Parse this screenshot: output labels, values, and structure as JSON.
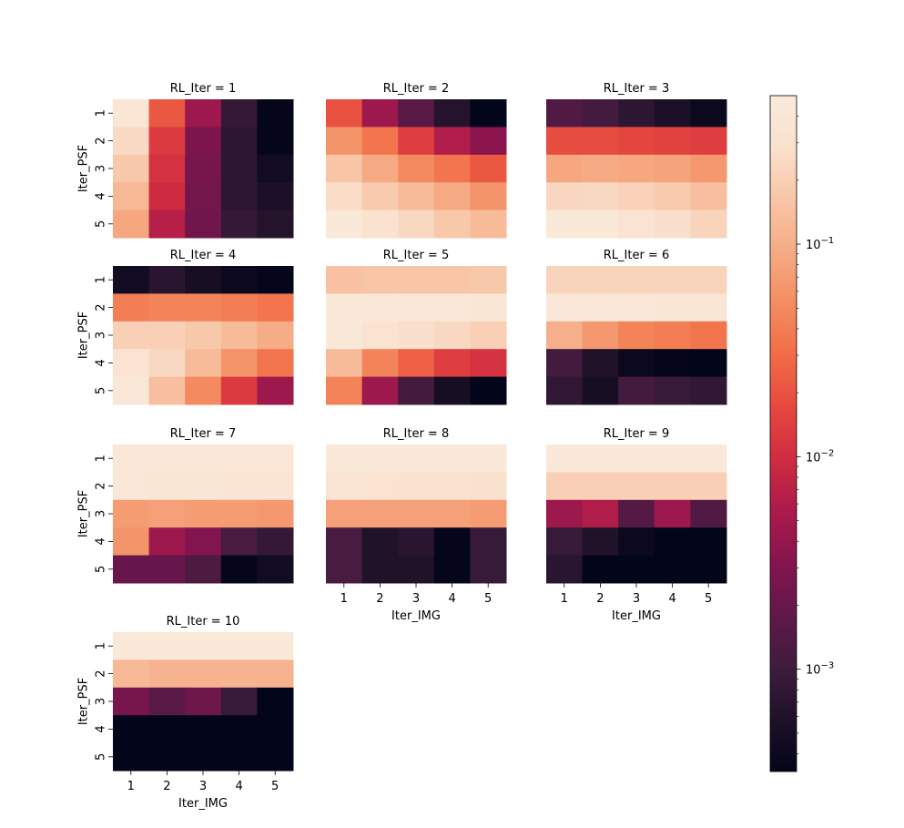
{
  "figure": {
    "colorbar": {
      "scale": "log",
      "range": [
        0.00033,
        0.5
      ],
      "colormap": "rocket",
      "tick_labels": [
        "10^-3",
        "10^-2",
        "10^-1"
      ],
      "tick_values": [
        0.001,
        0.01,
        0.1
      ]
    },
    "colors": {
      "rocket_stops": [
        "#03051a",
        "#1e1128",
        "#3e1c3c",
        "#60184a",
        "#85144e",
        "#ab1a4b",
        "#cf2c41",
        "#e6483f",
        "#f16c46",
        "#f48d61",
        "#f6ab85",
        "#f8c6a8",
        "#fae0cd",
        "#faebdd"
      ]
    }
  },
  "chart_data": {
    "type": "heatmap",
    "xlabel": "Iter_IMG",
    "ylabel": "Iter_PSF",
    "x_ticks": [
      "1",
      "2",
      "3",
      "4",
      "5"
    ],
    "y_ticks": [
      "1",
      "2",
      "3",
      "4",
      "5"
    ],
    "value_scale": "log",
    "panels": [
      {
        "title": "RL_Iter = 1",
        "values": [
          [
            0.38,
            0.022,
            0.0045,
            0.00085,
            0.00035
          ],
          [
            0.25,
            0.013,
            0.0028,
            0.00075,
            0.00035
          ],
          [
            0.17,
            0.011,
            0.0025,
            0.00075,
            0.00045
          ],
          [
            0.12,
            0.0095,
            0.0024,
            0.00075,
            0.00055
          ],
          [
            0.085,
            0.0065,
            0.0023,
            0.00085,
            0.00065
          ]
        ]
      },
      {
        "title": "RL_Iter = 2",
        "values": [
          [
            0.02,
            0.0045,
            0.0016,
            0.00065,
            0.00033
          ],
          [
            0.06,
            0.035,
            0.014,
            0.006,
            0.0035
          ],
          [
            0.16,
            0.09,
            0.05,
            0.035,
            0.022
          ],
          [
            0.26,
            0.18,
            0.13,
            0.09,
            0.06
          ],
          [
            0.42,
            0.31,
            0.24,
            0.17,
            0.13
          ]
        ]
      },
      {
        "title": "RL_Iter = 3",
        "values": [
          [
            0.0014,
            0.0011,
            0.00075,
            0.00055,
            0.0004
          ],
          [
            0.018,
            0.018,
            0.016,
            0.015,
            0.014
          ],
          [
            0.085,
            0.09,
            0.085,
            0.08,
            0.065
          ],
          [
            0.23,
            0.24,
            0.21,
            0.18,
            0.14
          ],
          [
            0.42,
            0.42,
            0.34,
            0.28,
            0.22
          ]
        ]
      },
      {
        "title": "RL_Iter = 4",
        "values": [
          [
            0.00045,
            0.0007,
            0.0005,
            0.0004,
            0.00035
          ],
          [
            0.04,
            0.045,
            0.045,
            0.04,
            0.035
          ],
          [
            0.2,
            0.2,
            0.17,
            0.13,
            0.095
          ],
          [
            0.34,
            0.24,
            0.13,
            0.06,
            0.035
          ],
          [
            0.4,
            0.14,
            0.05,
            0.013,
            0.0045
          ]
        ]
      },
      {
        "title": "RL_Iter = 5",
        "values": [
          [
            0.15,
            0.16,
            0.16,
            0.16,
            0.17
          ],
          [
            0.42,
            0.42,
            0.42,
            0.4,
            0.38
          ],
          [
            0.42,
            0.33,
            0.28,
            0.24,
            0.2
          ],
          [
            0.13,
            0.045,
            0.025,
            0.014,
            0.011
          ],
          [
            0.045,
            0.0045,
            0.0011,
            0.0005,
            0.00033
          ]
        ]
      },
      {
        "title": "RL_Iter = 6",
        "values": [
          [
            0.22,
            0.22,
            0.22,
            0.22,
            0.22
          ],
          [
            0.4,
            0.4,
            0.4,
            0.38,
            0.38
          ],
          [
            0.1,
            0.065,
            0.045,
            0.04,
            0.035
          ],
          [
            0.0011,
            0.0006,
            0.0004,
            0.00035,
            0.00033
          ],
          [
            0.0008,
            0.0005,
            0.0011,
            0.0009,
            0.0008
          ]
        ]
      },
      {
        "title": "RL_Iter = 7",
        "values": [
          [
            0.4,
            0.4,
            0.4,
            0.4,
            0.4
          ],
          [
            0.4,
            0.38,
            0.38,
            0.36,
            0.36
          ],
          [
            0.07,
            0.075,
            0.07,
            0.07,
            0.065
          ],
          [
            0.06,
            0.0045,
            0.003,
            0.0012,
            0.00085
          ],
          [
            0.002,
            0.002,
            0.0013,
            0.00035,
            0.00045
          ]
        ]
      },
      {
        "title": "RL_Iter = 8",
        "values": [
          [
            0.42,
            0.42,
            0.42,
            0.42,
            0.42
          ],
          [
            0.35,
            0.33,
            0.32,
            0.31,
            0.3
          ],
          [
            0.075,
            0.075,
            0.075,
            0.075,
            0.07
          ],
          [
            0.0012,
            0.0006,
            0.0007,
            0.00035,
            0.0009
          ],
          [
            0.0012,
            0.0006,
            0.0006,
            0.00035,
            0.0009
          ]
        ]
      },
      {
        "title": "RL_Iter = 9",
        "values": [
          [
            0.42,
            0.42,
            0.42,
            0.42,
            0.42
          ],
          [
            0.2,
            0.2,
            0.2,
            0.2,
            0.2
          ],
          [
            0.0045,
            0.006,
            0.0015,
            0.0045,
            0.0014
          ],
          [
            0.0009,
            0.0006,
            0.0004,
            0.00033,
            0.00033
          ],
          [
            0.0007,
            0.00033,
            0.00033,
            0.00033,
            0.00033
          ]
        ]
      },
      {
        "title": "RL_Iter = 10",
        "values": [
          [
            0.42,
            0.42,
            0.42,
            0.42,
            0.42
          ],
          [
            0.12,
            0.11,
            0.11,
            0.11,
            0.11
          ],
          [
            0.0025,
            0.0016,
            0.0022,
            0.0009,
            0.00033
          ],
          [
            0.00033,
            0.00033,
            0.00033,
            0.00033,
            0.00033
          ],
          [
            0.00033,
            0.00033,
            0.00033,
            0.00033,
            0.00033
          ]
        ]
      }
    ]
  }
}
